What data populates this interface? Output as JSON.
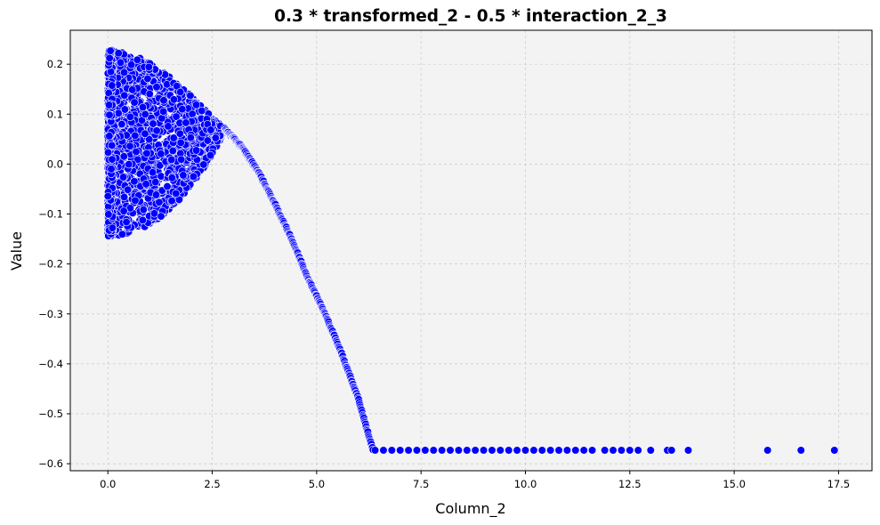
{
  "chart_data": {
    "type": "scatter",
    "title": "0.3 * transformed_2 - 0.5 * interaction_2_3",
    "xlabel": "Column_2",
    "ylabel": "Value",
    "xlim": [
      -0.9,
      18.3
    ],
    "ylim": [
      -0.614,
      0.268
    ],
    "x_ticks": [
      0.0,
      2.5,
      5.0,
      7.5,
      10.0,
      12.5,
      15.0,
      17.5
    ],
    "x_tick_labels": [
      "0.0",
      "2.5",
      "5.0",
      "7.5",
      "10.0",
      "12.5",
      "15.0",
      "17.5"
    ],
    "y_ticks": [
      -0.6,
      -0.5,
      -0.4,
      -0.3,
      -0.2,
      -0.1,
      0.0,
      0.1,
      0.2
    ],
    "y_tick_labels": [
      "−0.6",
      "−0.5",
      "−0.4",
      "−0.3",
      "−0.2",
      "−0.1",
      "0.0",
      "0.1",
      "0.2"
    ],
    "grid": true,
    "legend": "none",
    "colors": {
      "point": "#0000ff",
      "point_edge": "#ffffff",
      "plot_bg": "#f3f3f3",
      "grid": "#c8c8c8"
    },
    "series": [
      {
        "dense_cloud_envelope": {
          "x": [
            0.0,
            0.4,
            0.8,
            1.2,
            1.6,
            2.0,
            2.4,
            2.8
          ],
          "upper": [
            0.228,
            0.224,
            0.212,
            0.193,
            0.166,
            0.136,
            0.102,
            0.07
          ],
          "lower": [
            -0.145,
            -0.142,
            -0.13,
            -0.11,
            -0.082,
            -0.045,
            0.005,
            0.065
          ]
        },
        "curve": {
          "x": [
            2.8,
            3.2,
            3.6,
            4.0,
            4.4,
            4.8,
            5.2,
            5.6,
            6.0,
            6.2,
            6.35
          ],
          "y": [
            0.07,
            0.035,
            -0.015,
            -0.08,
            -0.15,
            -0.23,
            -0.3,
            -0.38,
            -0.47,
            -0.53,
            -0.573
          ]
        },
        "flat_tail": {
          "y": -0.573,
          "x": [
            6.4,
            6.6,
            6.8,
            7.0,
            7.2,
            7.4,
            7.6,
            7.8,
            8.0,
            8.2,
            8.4,
            8.6,
            8.8,
            9.0,
            9.2,
            9.4,
            9.6,
            9.8,
            10.0,
            10.2,
            10.4,
            10.6,
            10.8,
            11.0,
            11.2,
            11.4,
            11.6,
            11.9,
            12.1,
            12.3,
            12.5,
            12.7,
            13.0,
            13.4,
            13.5,
            13.9,
            15.8,
            16.6,
            17.4
          ]
        }
      }
    ]
  }
}
